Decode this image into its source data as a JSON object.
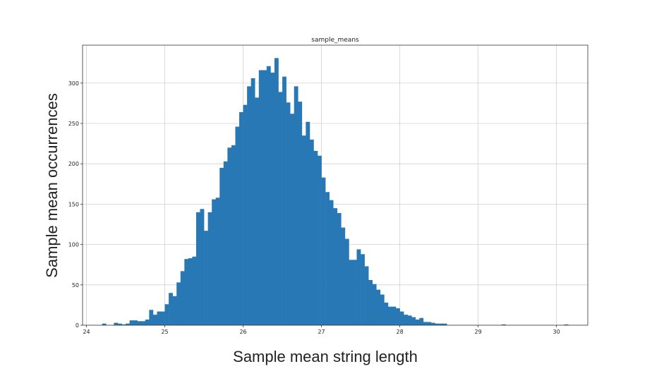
{
  "chart_data": {
    "type": "bar",
    "title": "sample_means",
    "xlabel": "Sample mean string length",
    "ylabel": "Sample mean occurrences",
    "xlim": [
      23.95,
      30.4
    ],
    "ylim": [
      0,
      347
    ],
    "x_ticks": [
      24,
      25,
      26,
      27,
      28,
      29,
      30
    ],
    "y_ticks": [
      0,
      50,
      100,
      150,
      200,
      250,
      300
    ],
    "grid": true,
    "bar_color": "#2878b5",
    "bin_width": 0.05,
    "bin_starts": [
      24.2,
      24.25,
      24.3,
      24.35,
      24.4,
      24.45,
      24.5,
      24.55,
      24.6,
      24.65,
      24.7,
      24.75,
      24.8,
      24.85,
      24.9,
      24.95,
      25.0,
      25.05,
      25.1,
      25.15,
      25.2,
      25.25,
      25.3,
      25.35,
      25.4,
      25.45,
      25.5,
      25.55,
      25.6,
      25.65,
      25.7,
      25.75,
      25.8,
      25.85,
      25.9,
      25.95,
      26.0,
      26.05,
      26.1,
      26.15,
      26.2,
      26.25,
      26.3,
      26.35,
      26.4,
      26.45,
      26.5,
      26.55,
      26.6,
      26.65,
      26.7,
      26.75,
      26.8,
      26.85,
      26.9,
      26.95,
      27.0,
      27.05,
      27.1,
      27.15,
      27.2,
      27.25,
      27.3,
      27.35,
      27.4,
      27.45,
      27.5,
      27.55,
      27.6,
      27.65,
      27.7,
      27.75,
      27.8,
      27.85,
      27.9,
      27.95,
      28.0,
      28.05,
      28.1,
      28.15,
      28.2,
      28.25,
      28.3,
      28.35,
      28.4,
      28.45,
      28.5,
      28.55,
      28.6,
      28.65,
      28.7,
      28.75,
      28.8,
      28.85,
      28.9,
      28.95,
      29.0,
      29.05,
      29.1,
      29.15,
      29.2,
      29.25,
      29.3,
      29.35,
      29.4,
      29.45,
      29.5,
      29.55,
      29.6,
      29.65,
      29.7,
      29.75,
      29.8,
      29.85,
      29.9,
      29.95,
      30.0,
      30.05,
      30.1
    ],
    "values": [
      2,
      0,
      0,
      3,
      2,
      1,
      2,
      6,
      6,
      5,
      5,
      7,
      19,
      13,
      17,
      17,
      26,
      40,
      36,
      53,
      67,
      82,
      83,
      85,
      140,
      144,
      117,
      140,
      156,
      158,
      195,
      203,
      220,
      223,
      246,
      264,
      273,
      296,
      306,
      282,
      316,
      316,
      321,
      313,
      331,
      289,
      308,
      276,
      262,
      296,
      277,
      235,
      252,
      230,
      216,
      210,
      183,
      165,
      155,
      145,
      139,
      121,
      107,
      81,
      81,
      94,
      88,
      73,
      56,
      51,
      44,
      38,
      28,
      23,
      23,
      21,
      17,
      13,
      12,
      10,
      7,
      9,
      4,
      4,
      3,
      2,
      2,
      2,
      0,
      0,
      0,
      0,
      0,
      0,
      0,
      0,
      0,
      0,
      0,
      0,
      0,
      0,
      1,
      0,
      0,
      0,
      0,
      0,
      0,
      0,
      0,
      0,
      0,
      0,
      0,
      0,
      0,
      0,
      1
    ]
  }
}
